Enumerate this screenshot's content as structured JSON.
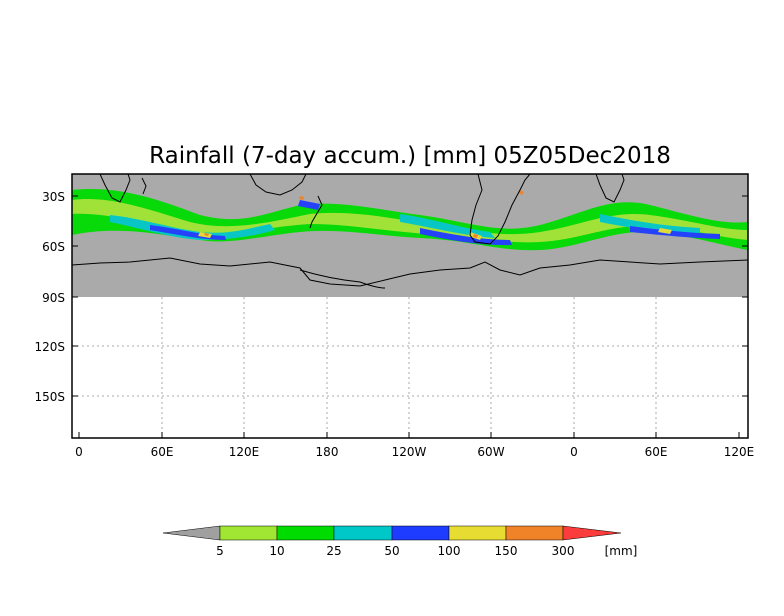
{
  "title": "Rainfall (7-day accum.) [mm] 05Z05Dec2018",
  "map": {
    "lat_ticks": [
      "30S",
      "60S",
      "90S",
      "120S",
      "150S"
    ],
    "lon_ticks": [
      "0",
      "60E",
      "120E",
      "180",
      "120W",
      "60W",
      "0",
      "60E",
      "120E"
    ],
    "data_color": "#aaaaaa",
    "grid": true
  },
  "colorbar": {
    "unit": "[mm]",
    "labels": [
      "5",
      "10",
      "25",
      "50",
      "100",
      "150",
      "300"
    ],
    "colors": [
      "#a0a0a0",
      "#a0e632",
      "#00dc00",
      "#00c8c8",
      "#1e3cff",
      "#e6dc32",
      "#f08228",
      "#fa3c3c"
    ]
  }
}
